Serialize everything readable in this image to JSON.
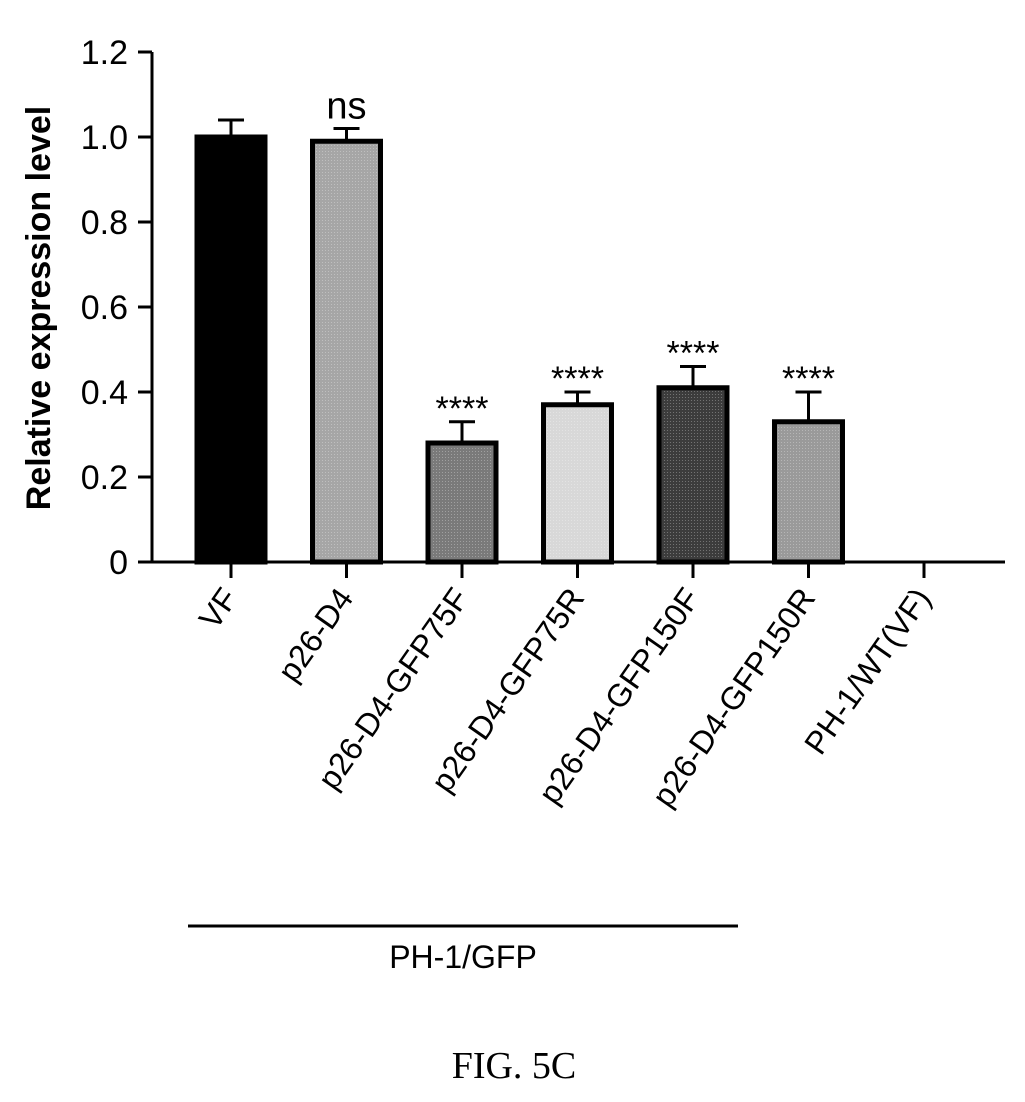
{
  "chart_data": {
    "type": "bar",
    "title": "",
    "ylabel": "Relative expression level",
    "xlabel": "",
    "ylim": [
      0,
      1.2
    ],
    "y_ticks": [
      {
        "value": 0,
        "label": "0"
      },
      {
        "value": 0.2,
        "label": "0.2"
      },
      {
        "value": 0.4,
        "label": "0.4"
      },
      {
        "value": 0.6,
        "label": "0.6"
      },
      {
        "value": 0.8,
        "label": "0.8"
      },
      {
        "value": 1.0,
        "label": "1.0"
      },
      {
        "value": 1.2,
        "label": "1.2"
      }
    ],
    "categories": [
      "VF",
      "p26-D4",
      "p26-D4-GFP75F",
      "p26-D4-GFP75R",
      "p26-D4-GFP150F",
      "p26-D4-GFP150R",
      "PH-1/WT(VF)"
    ],
    "values": [
      1.0,
      0.99,
      0.28,
      0.37,
      0.41,
      0.33,
      0
    ],
    "errors": [
      0.04,
      0.03,
      0.05,
      0.03,
      0.05,
      0.07,
      0
    ],
    "significance": [
      "",
      "ns",
      "****",
      "****",
      "****",
      "****",
      ""
    ],
    "bar_fills": [
      "#000000",
      "#a6a6a6",
      "#7a7a7a",
      "#d8d8d8",
      "#3c3c3c",
      "#9a9a9a",
      "#ffffff"
    ],
    "grid": false,
    "group_bracket": {
      "label": "PH-1/GFP",
      "from_category": 0,
      "to_category": 4
    }
  },
  "caption": "FIG. 5C"
}
